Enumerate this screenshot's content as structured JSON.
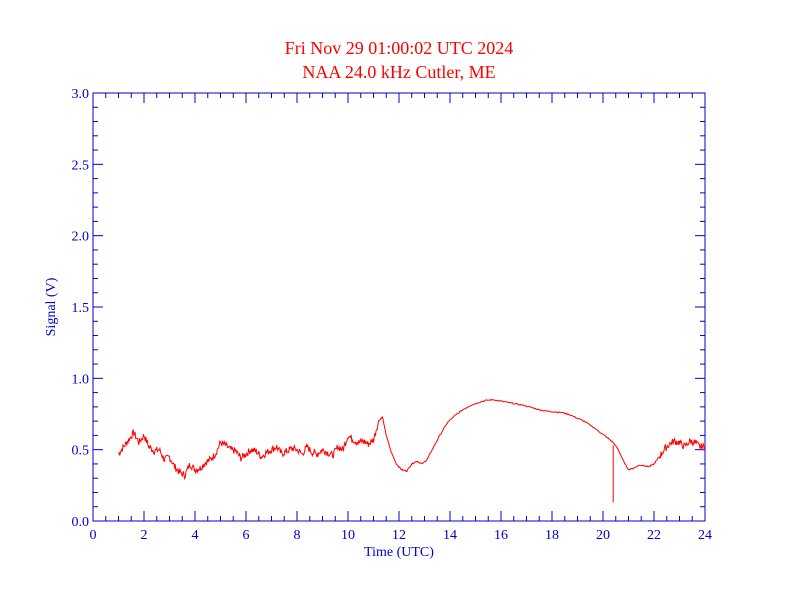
{
  "chart_data": {
    "type": "line",
    "title": "Fri Nov 29 01:00:02 UTC 2024",
    "subtitle": "NAA 24.0 kHz Cutler, ME",
    "xlabel": "Time (UTC)",
    "ylabel": "Signal (V)",
    "xlim": [
      0,
      24
    ],
    "ylim": [
      0,
      3.0
    ],
    "xticks": [
      "0",
      "2",
      "4",
      "6",
      "8",
      "10",
      "12",
      "14",
      "16",
      "18",
      "20",
      "22",
      "24"
    ],
    "yticks": [
      "0.0",
      "0.5",
      "1.0",
      "1.5",
      "2.0",
      "2.5",
      "3.0"
    ],
    "grid": false,
    "colors": {
      "axis": "#0000cc",
      "series": "#ff0000",
      "title": "#ff0000"
    },
    "series": [
      {
        "x": [
          1.0,
          1.2,
          1.4,
          1.6,
          1.8,
          2.0,
          2.2,
          2.4,
          2.6,
          2.8,
          3.0,
          3.2,
          3.4,
          3.6,
          3.8,
          4.0,
          4.2,
          4.4,
          4.6,
          4.8,
          5.0,
          5.2,
          5.4,
          5.6,
          5.8,
          6.0,
          6.2,
          6.4,
          6.6,
          6.8,
          7.0,
          7.2,
          7.4,
          7.6,
          7.8,
          8.0,
          8.2,
          8.4,
          8.6,
          8.8,
          9.0,
          9.2,
          9.4,
          9.6,
          9.8,
          10.0,
          10.2,
          10.4,
          10.6,
          10.8,
          11.0,
          11.2,
          11.35,
          11.5,
          11.7,
          11.9,
          12.1,
          12.3,
          12.5,
          12.7,
          12.9,
          13.1,
          13.3,
          13.6,
          13.9,
          14.2,
          14.5,
          14.8,
          15.1,
          15.4,
          15.7,
          16.0,
          16.3,
          16.6,
          16.9,
          17.2,
          17.5,
          17.8,
          18.1,
          18.4,
          18.7,
          19.0,
          19.3,
          19.6,
          19.9,
          20.2,
          20.4,
          20.6,
          20.8,
          21.0,
          21.2,
          21.4,
          21.6,
          21.8,
          22.0,
          22.2,
          22.4,
          22.6,
          22.8,
          23.0,
          23.2,
          23.4,
          23.6,
          23.8,
          24.0
        ],
        "y": [
          0.47,
          0.52,
          0.57,
          0.62,
          0.55,
          0.6,
          0.52,
          0.49,
          0.5,
          0.43,
          0.45,
          0.38,
          0.34,
          0.32,
          0.4,
          0.36,
          0.37,
          0.41,
          0.43,
          0.47,
          0.55,
          0.53,
          0.5,
          0.49,
          0.44,
          0.47,
          0.5,
          0.49,
          0.45,
          0.48,
          0.5,
          0.52,
          0.47,
          0.49,
          0.51,
          0.5,
          0.47,
          0.52,
          0.48,
          0.47,
          0.5,
          0.48,
          0.46,
          0.52,
          0.5,
          0.6,
          0.57,
          0.55,
          0.56,
          0.54,
          0.57,
          0.7,
          0.73,
          0.6,
          0.48,
          0.4,
          0.36,
          0.35,
          0.4,
          0.42,
          0.4,
          0.43,
          0.5,
          0.6,
          0.69,
          0.74,
          0.78,
          0.81,
          0.83,
          0.845,
          0.85,
          0.84,
          0.83,
          0.82,
          0.81,
          0.795,
          0.78,
          0.77,
          0.765,
          0.76,
          0.745,
          0.72,
          0.695,
          0.66,
          0.62,
          0.58,
          0.55,
          0.5,
          0.42,
          0.36,
          0.37,
          0.39,
          0.39,
          0.38,
          0.4,
          0.45,
          0.5,
          0.54,
          0.56,
          0.55,
          0.52,
          0.56,
          0.55,
          0.52,
          0.52
        ]
      }
    ],
    "spike": {
      "x": 20.4,
      "y_top": 0.53,
      "y_bottom": 0.13
    }
  }
}
